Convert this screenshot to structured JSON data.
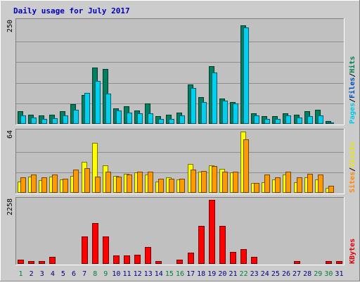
{
  "chart_data": [
    {
      "type": "bar",
      "title": "Daily usage for July 2017",
      "ylim": [
        0,
        250
      ],
      "y_tick_label": "250",
      "legend": [
        {
          "name": "Pages",
          "color": "#00c8e8"
        },
        {
          "name": "Files",
          "color": "#0050c0"
        },
        {
          "name": "Hits",
          "color": "#008050"
        }
      ],
      "series": [
        {
          "name": "Hits",
          "color": "#008060",
          "values": [
            30,
            22,
            20,
            22,
            30,
            48,
            70,
            137,
            133,
            38,
            42,
            32,
            50,
            18,
            22,
            28,
            96,
            65,
            140,
            62,
            53,
            240,
            25,
            18,
            18,
            25,
            23,
            30,
            35,
            6,
            0
          ]
        },
        {
          "name": "Pages",
          "color": "#00d0f0",
          "values": [
            20,
            15,
            12,
            14,
            20,
            35,
            76,
            104,
            73,
            32,
            28,
            25,
            26,
            12,
            12,
            20,
            87,
            53,
            125,
            57,
            50,
            235,
            20,
            12,
            12,
            20,
            15,
            18,
            20,
            4,
            0
          ]
        }
      ]
    },
    {
      "type": "bar",
      "ylim": [
        0,
        64
      ],
      "y_tick_label": "64",
      "legend": [
        {
          "name": "Sites",
          "color": "#ff8800"
        },
        {
          "name": "Visits",
          "color": "#e8e800"
        }
      ],
      "series": [
        {
          "name": "Visits",
          "color": "#ffff00",
          "values": [
            12,
            17,
            13,
            17,
            14,
            18,
            32,
            52,
            29,
            18,
            20,
            21,
            19,
            12,
            16,
            14,
            30,
            22,
            29,
            25,
            21,
            64,
            10,
            11,
            14,
            19,
            11,
            16,
            14,
            5,
            0
          ]
        },
        {
          "name": "Sites",
          "color": "#ff9900",
          "values": [
            16,
            19,
            16,
            19,
            15,
            24,
            26,
            17,
            22,
            17,
            19,
            22,
            22,
            15,
            15,
            15,
            24,
            23,
            28,
            22,
            22,
            56,
            10,
            19,
            16,
            22,
            16,
            20,
            19,
            7,
            0
          ]
        }
      ]
    },
    {
      "type": "bar",
      "ylim": [
        0,
        2258
      ],
      "y_tick_label": "2258",
      "legend": [
        {
          "name": "KBytes",
          "color": "#e00000"
        }
      ],
      "series": [
        {
          "name": "KBytes",
          "color": "#ff0000",
          "values": [
            140,
            100,
            90,
            250,
            20,
            20,
            960,
            1430,
            960,
            290,
            290,
            330,
            600,
            100,
            10,
            150,
            400,
            1350,
            2258,
            1350,
            430,
            520,
            250,
            20,
            10,
            20,
            110,
            10,
            20,
            110,
            90
          ]
        }
      ]
    }
  ],
  "x_axis": {
    "categories": [
      "1",
      "2",
      "3",
      "4",
      "5",
      "6",
      "7",
      "8",
      "9",
      "10",
      "11",
      "12",
      "13",
      "14",
      "15",
      "16",
      "17",
      "18",
      "19",
      "20",
      "21",
      "22",
      "23",
      "24",
      "25",
      "26",
      "27",
      "28",
      "29",
      "30",
      "31"
    ],
    "weekend_days": [
      "1",
      "8",
      "9",
      "15",
      "16",
      "22",
      "29",
      "30"
    ],
    "weekday_color": "#000080",
    "weekend_color": "#008040"
  }
}
